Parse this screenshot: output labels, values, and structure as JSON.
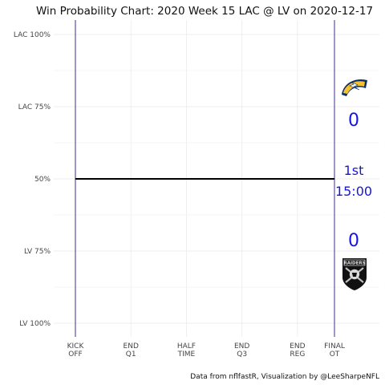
{
  "chart_data": {
    "type": "line",
    "title": "Win Probability Chart: 2020 Week 15 LAC @ LV on 2020-12-17",
    "y_ticks": [
      {
        "label": "LAC 100%",
        "value": 1.0
      },
      {
        "label": "LAC 75%",
        "value": 0.75
      },
      {
        "label": "50%",
        "value": 0.5
      },
      {
        "label": "LV 75%",
        "value": 0.25
      },
      {
        "label": "LV 100%",
        "value": 0.0
      }
    ],
    "x_ticks": [
      {
        "line1": "KICK",
        "line2": "OFF",
        "value": 0
      },
      {
        "line1": "END",
        "line2": "Q1",
        "value": 900
      },
      {
        "line1": "HALF",
        "line2": "TIME",
        "value": 1800
      },
      {
        "line1": "END",
        "line2": "Q3",
        "value": 2700
      },
      {
        "line1": "END",
        "line2": "REG",
        "value": 3600
      },
      {
        "line1": "FINAL",
        "line2": "OT",
        "value": 4200
      }
    ],
    "xlim": [
      0,
      4200
    ],
    "ylim": [
      0,
      1
    ],
    "series": [
      {
        "x": [
          0,
          4200
        ],
        "values": [
          0.5,
          0.5
        ],
        "color": "#000000"
      }
    ],
    "boundary_lines_color": "#3a2f8f",
    "grid": true
  },
  "teams": {
    "home_abbr": "LAC",
    "away_abbr": "LV",
    "top_logo": "chargers-bolt-logo",
    "bottom_logo": "raiders-shield-logo",
    "bottom_logo_text": "RAIDERS",
    "top_score": "0",
    "bottom_score": "0",
    "quarter": "1st",
    "clock": "15:00",
    "score_color": "#1515e0"
  },
  "caption": "Data from nflfastR, Visualization by @LeeSharpeNFL"
}
